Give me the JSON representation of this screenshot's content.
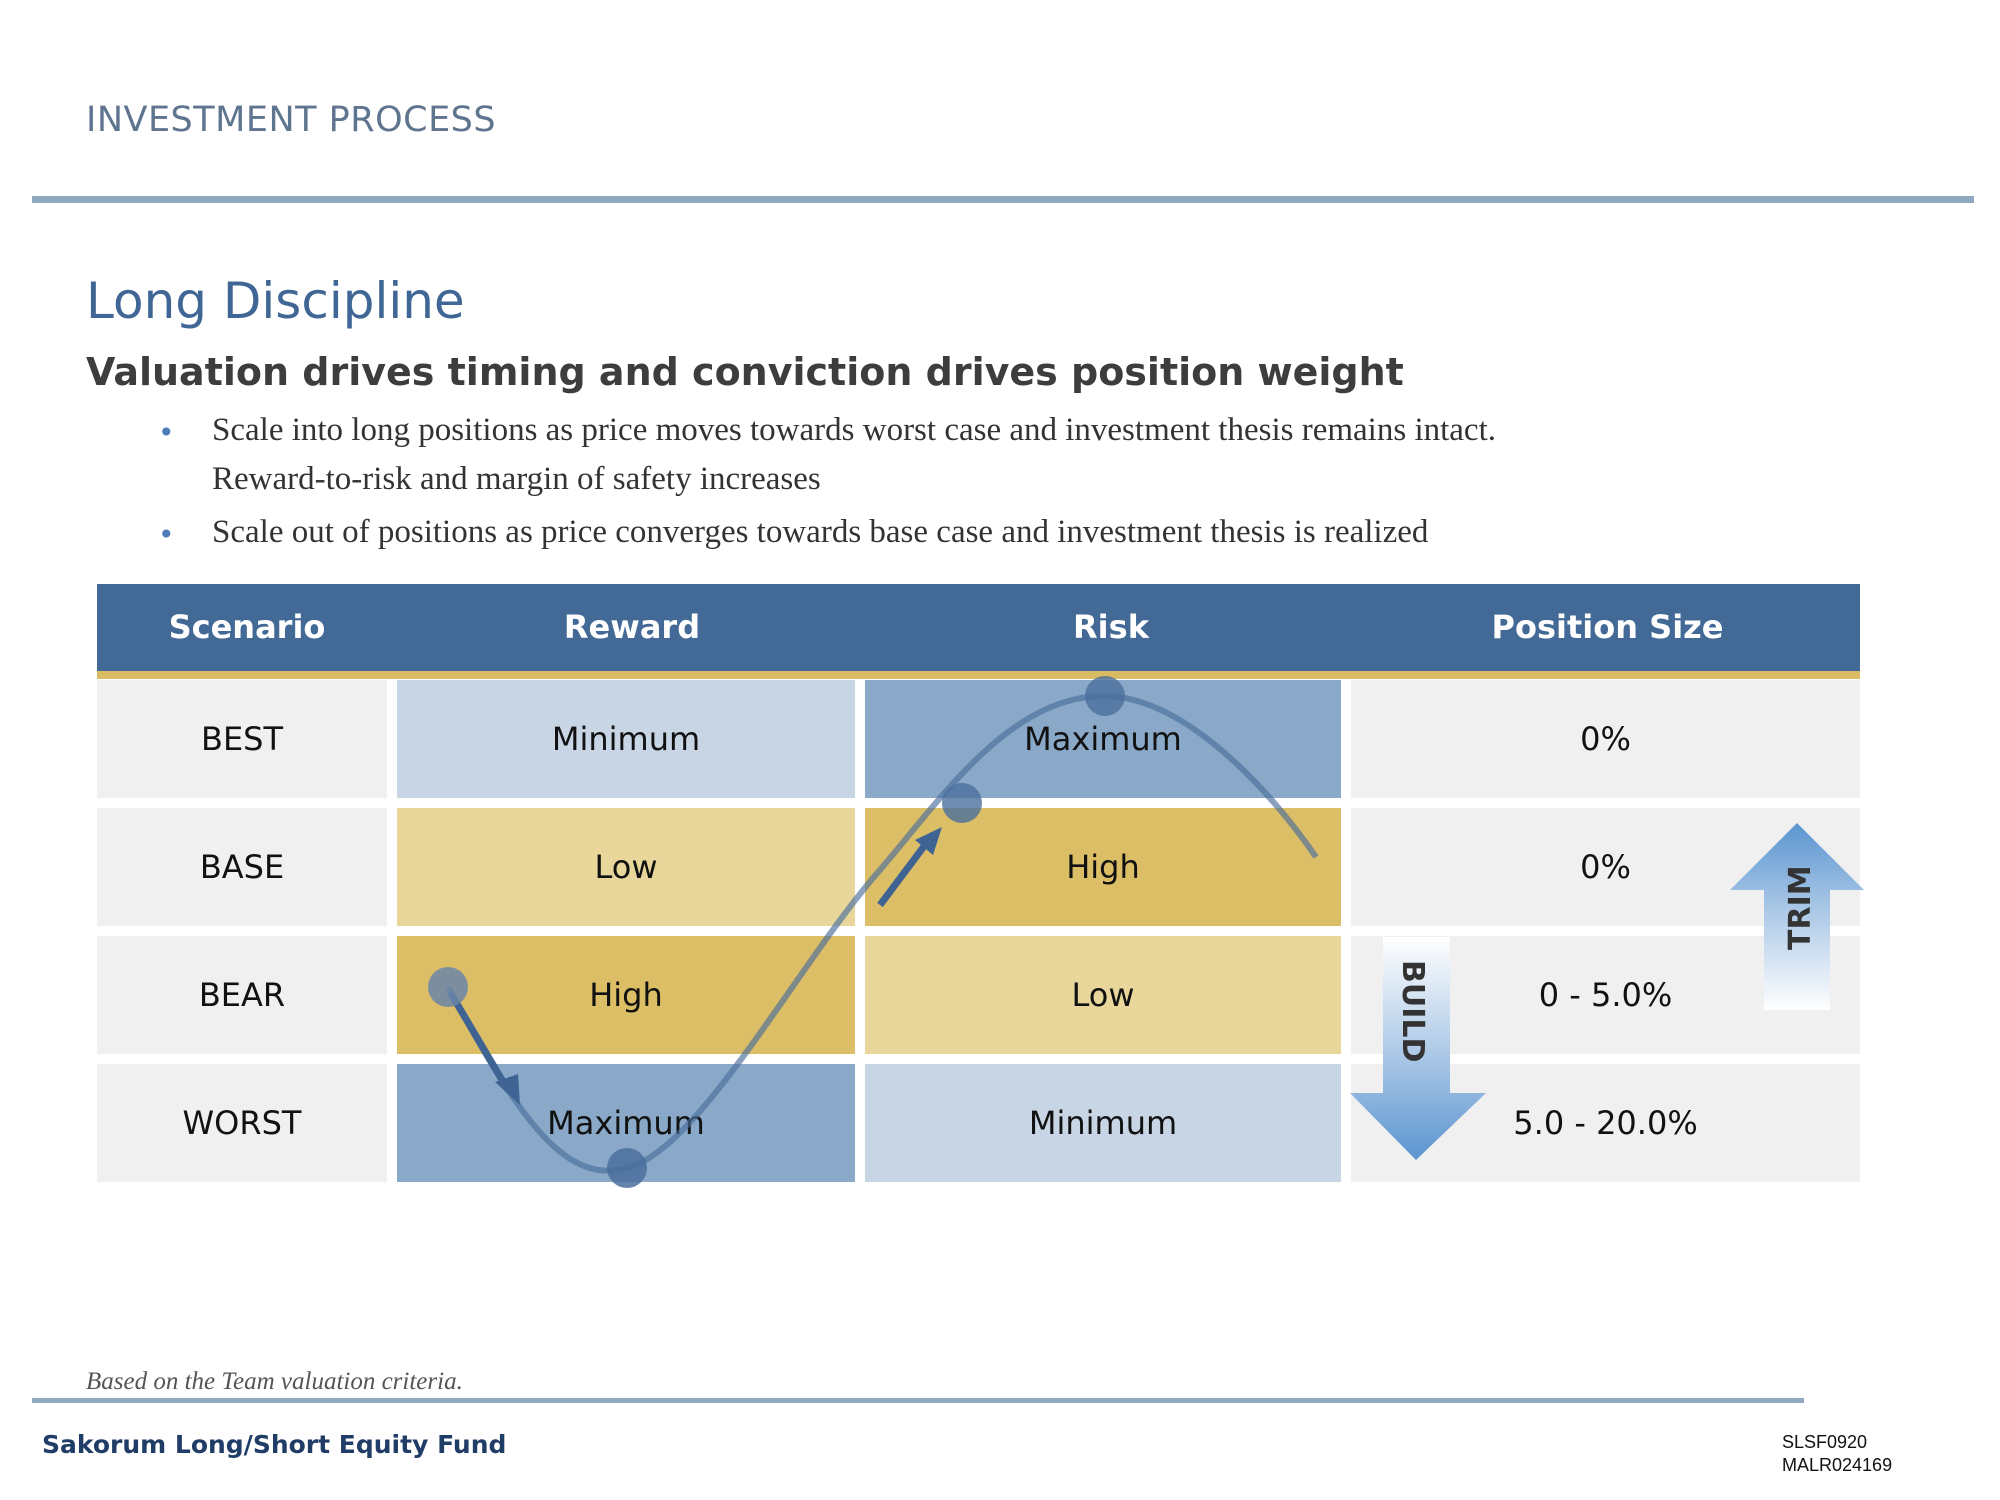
{
  "header": {
    "section": "INVESTMENT PROCESS"
  },
  "title": "Long Discipline",
  "subtitle": "Valuation drives timing and conviction drives position weight",
  "bullets": [
    {
      "line1": "Scale into long positions as price moves towards worst case and investment thesis remains intact.",
      "line2": "Reward-to-risk and margin of safety increases"
    },
    {
      "line1": "Scale out of positions as price converges towards base case and investment thesis is realized"
    }
  ],
  "table": {
    "headers": [
      "Scenario",
      "Reward",
      "Risk",
      "Position Size"
    ],
    "rows": [
      {
        "scenario": "BEST",
        "reward": "Minimum",
        "risk": "Maximum",
        "position": "0%"
      },
      {
        "scenario": "BASE",
        "reward": "Low",
        "risk": "High",
        "position": "0%"
      },
      {
        "scenario": "BEAR",
        "reward": "High",
        "risk": "Low",
        "position": "0 - 5.0%"
      },
      {
        "scenario": "WORST",
        "reward": "Maximum",
        "risk": "Minimum",
        "position": "5.0 - 20.0%"
      }
    ]
  },
  "arrows": {
    "build": "BUILD",
    "trim": "TRIM"
  },
  "colors": {
    "header_blue": "#436a96",
    "gold_rule": "#d8bb62",
    "light_blue": "#c8d5e5",
    "mid_blue": "#8aa8c8",
    "pale_gold": "#e8d69b",
    "gold": "#dcbe66",
    "light_gray": "#f0f0f0"
  },
  "footer": {
    "note": "Based on the Team valuation criteria.",
    "fund": "Sakorum Long/Short Equity Fund",
    "code1": "SLSF0920",
    "code2": "MALR024169"
  }
}
